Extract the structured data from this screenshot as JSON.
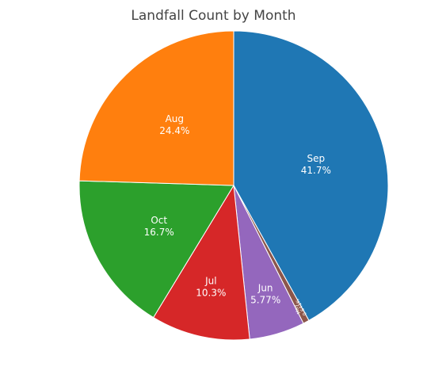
{
  "chart_data": {
    "type": "pie",
    "title": "Landfall Count by Month",
    "direction": "clockwise",
    "start_angle": "12 o'clock",
    "slices": [
      {
        "label": "Sep",
        "percent": 41.7,
        "percent_text": "41.7%",
        "color": "#1f77b4"
      },
      {
        "label": "May",
        "percent": 0.641,
        "percent_text": "0.641%",
        "color": "#8c564b"
      },
      {
        "label": "Jun",
        "percent": 5.77,
        "percent_text": "5.77%",
        "color": "#9467bd"
      },
      {
        "label": "Jul",
        "percent": 10.3,
        "percent_text": "10.3%",
        "color": "#d62728"
      },
      {
        "label": "Oct",
        "percent": 16.7,
        "percent_text": "16.7%",
        "color": "#2ca02c"
      },
      {
        "label": "Aug",
        "percent": 24.4,
        "percent_text": "24.4%",
        "color": "#ff7f0e"
      }
    ],
    "legend": "none"
  }
}
